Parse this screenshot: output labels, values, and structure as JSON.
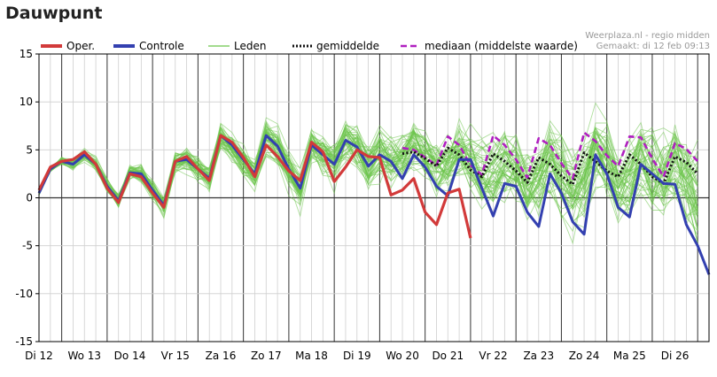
{
  "title": "Dauwpunt",
  "credit": {
    "line1": "Weerplaza.nl - regio midden",
    "line2": "Gemaakt: di 12 feb 09:13"
  },
  "colors": {
    "oper": "#d23a3a",
    "controle": "#3340b0",
    "leden": "#6cc54a",
    "gemiddelde": "#111111",
    "mediaan": "#b020c0"
  },
  "chart_data": {
    "type": "line",
    "title": "Dauwpunt",
    "xlabel": "",
    "ylabel": "",
    "ylim": [
      -15,
      15
    ],
    "yticks": [
      15,
      10,
      5,
      0,
      -5,
      -10,
      -15
    ],
    "x_unit": "step (4 per day, 6-hourly)",
    "xlim": [
      0,
      59
    ],
    "day_labels": [
      "Di 12",
      "Wo 13",
      "Do 14",
      "Vr 15",
      "Za 16",
      "Zo 17",
      "Ma 18",
      "Di 19",
      "Wo 20",
      "Do 21",
      "Vr 22",
      "Za 23",
      "Zo 24",
      "Ma 25",
      "Di 26"
    ],
    "legend": [
      "Oper.",
      "Controle",
      "Leden",
      "gemiddelde",
      "mediaan (middelste waarde)"
    ],
    "series": [
      {
        "name": "Oper.",
        "x_start": 0,
        "values": [
          0.8,
          3.2,
          3.8,
          4,
          4.8,
          3.5,
          1,
          -0.5,
          2.5,
          2.2,
          0.5,
          -1,
          3.8,
          4.3,
          3,
          1.8,
          6.5,
          5.8,
          4.2,
          2.2,
          5.5,
          4.3,
          2.8,
          1.8,
          5.8,
          4.8,
          1.7,
          3.2,
          5,
          4.3,
          4.2,
          0.3,
          0.8,
          2,
          -1.5,
          -2.8,
          0.5,
          0.9,
          -4.2
        ]
      },
      {
        "name": "Controle",
        "x_start": 0,
        "values": [
          0.5,
          3,
          3.8,
          3.5,
          4.5,
          3.5,
          1.2,
          -0.3,
          2.6,
          2.5,
          0.8,
          -0.8,
          3.8,
          4,
          3,
          2,
          6.5,
          5.5,
          4,
          2.5,
          6.5,
          5.4,
          3,
          1,
          5.5,
          4.5,
          3.5,
          6,
          5.3,
          3.3,
          4.5,
          3.8,
          2,
          4.5,
          3.2,
          1.2,
          0.2,
          4,
          4,
          1,
          -1.9,
          1.5,
          1.2,
          -1.5,
          -3,
          2.5,
          0.5,
          -2.5,
          -3.8,
          4.5,
          2.5,
          -1,
          -2,
          3.5,
          2.5,
          1.5,
          1.4,
          -2.8,
          -5,
          -8
        ]
      },
      {
        "name": "gemiddelde",
        "x_start": 32,
        "values": [
          4.6,
          4.8,
          4.1,
          3.3,
          5.2,
          4.5,
          2.9,
          2.2,
          4.6,
          3.8,
          2.8,
          1.6,
          4.2,
          3.5,
          2.3,
          1.4,
          4.7,
          3.8,
          2.8,
          2.2,
          4.5,
          3.5,
          2.2,
          1.5,
          4.3,
          3.7,
          2.5
        ]
      },
      {
        "name": "mediaan (middelste waarde)",
        "x_start": 32,
        "values": [
          5.2,
          5,
          4.2,
          3.4,
          6.4,
          5.5,
          3.4,
          2.4,
          6.5,
          5.5,
          4,
          2.1,
          6.2,
          5.5,
          3.6,
          2,
          6.8,
          5.9,
          4.4,
          3.3,
          6.4,
          6.3,
          4.1,
          2.2,
          5.7,
          5.1,
          3.8
        ]
      }
    ],
    "members_note": "Leden: ~50 thin green ensemble-member lines"
  }
}
